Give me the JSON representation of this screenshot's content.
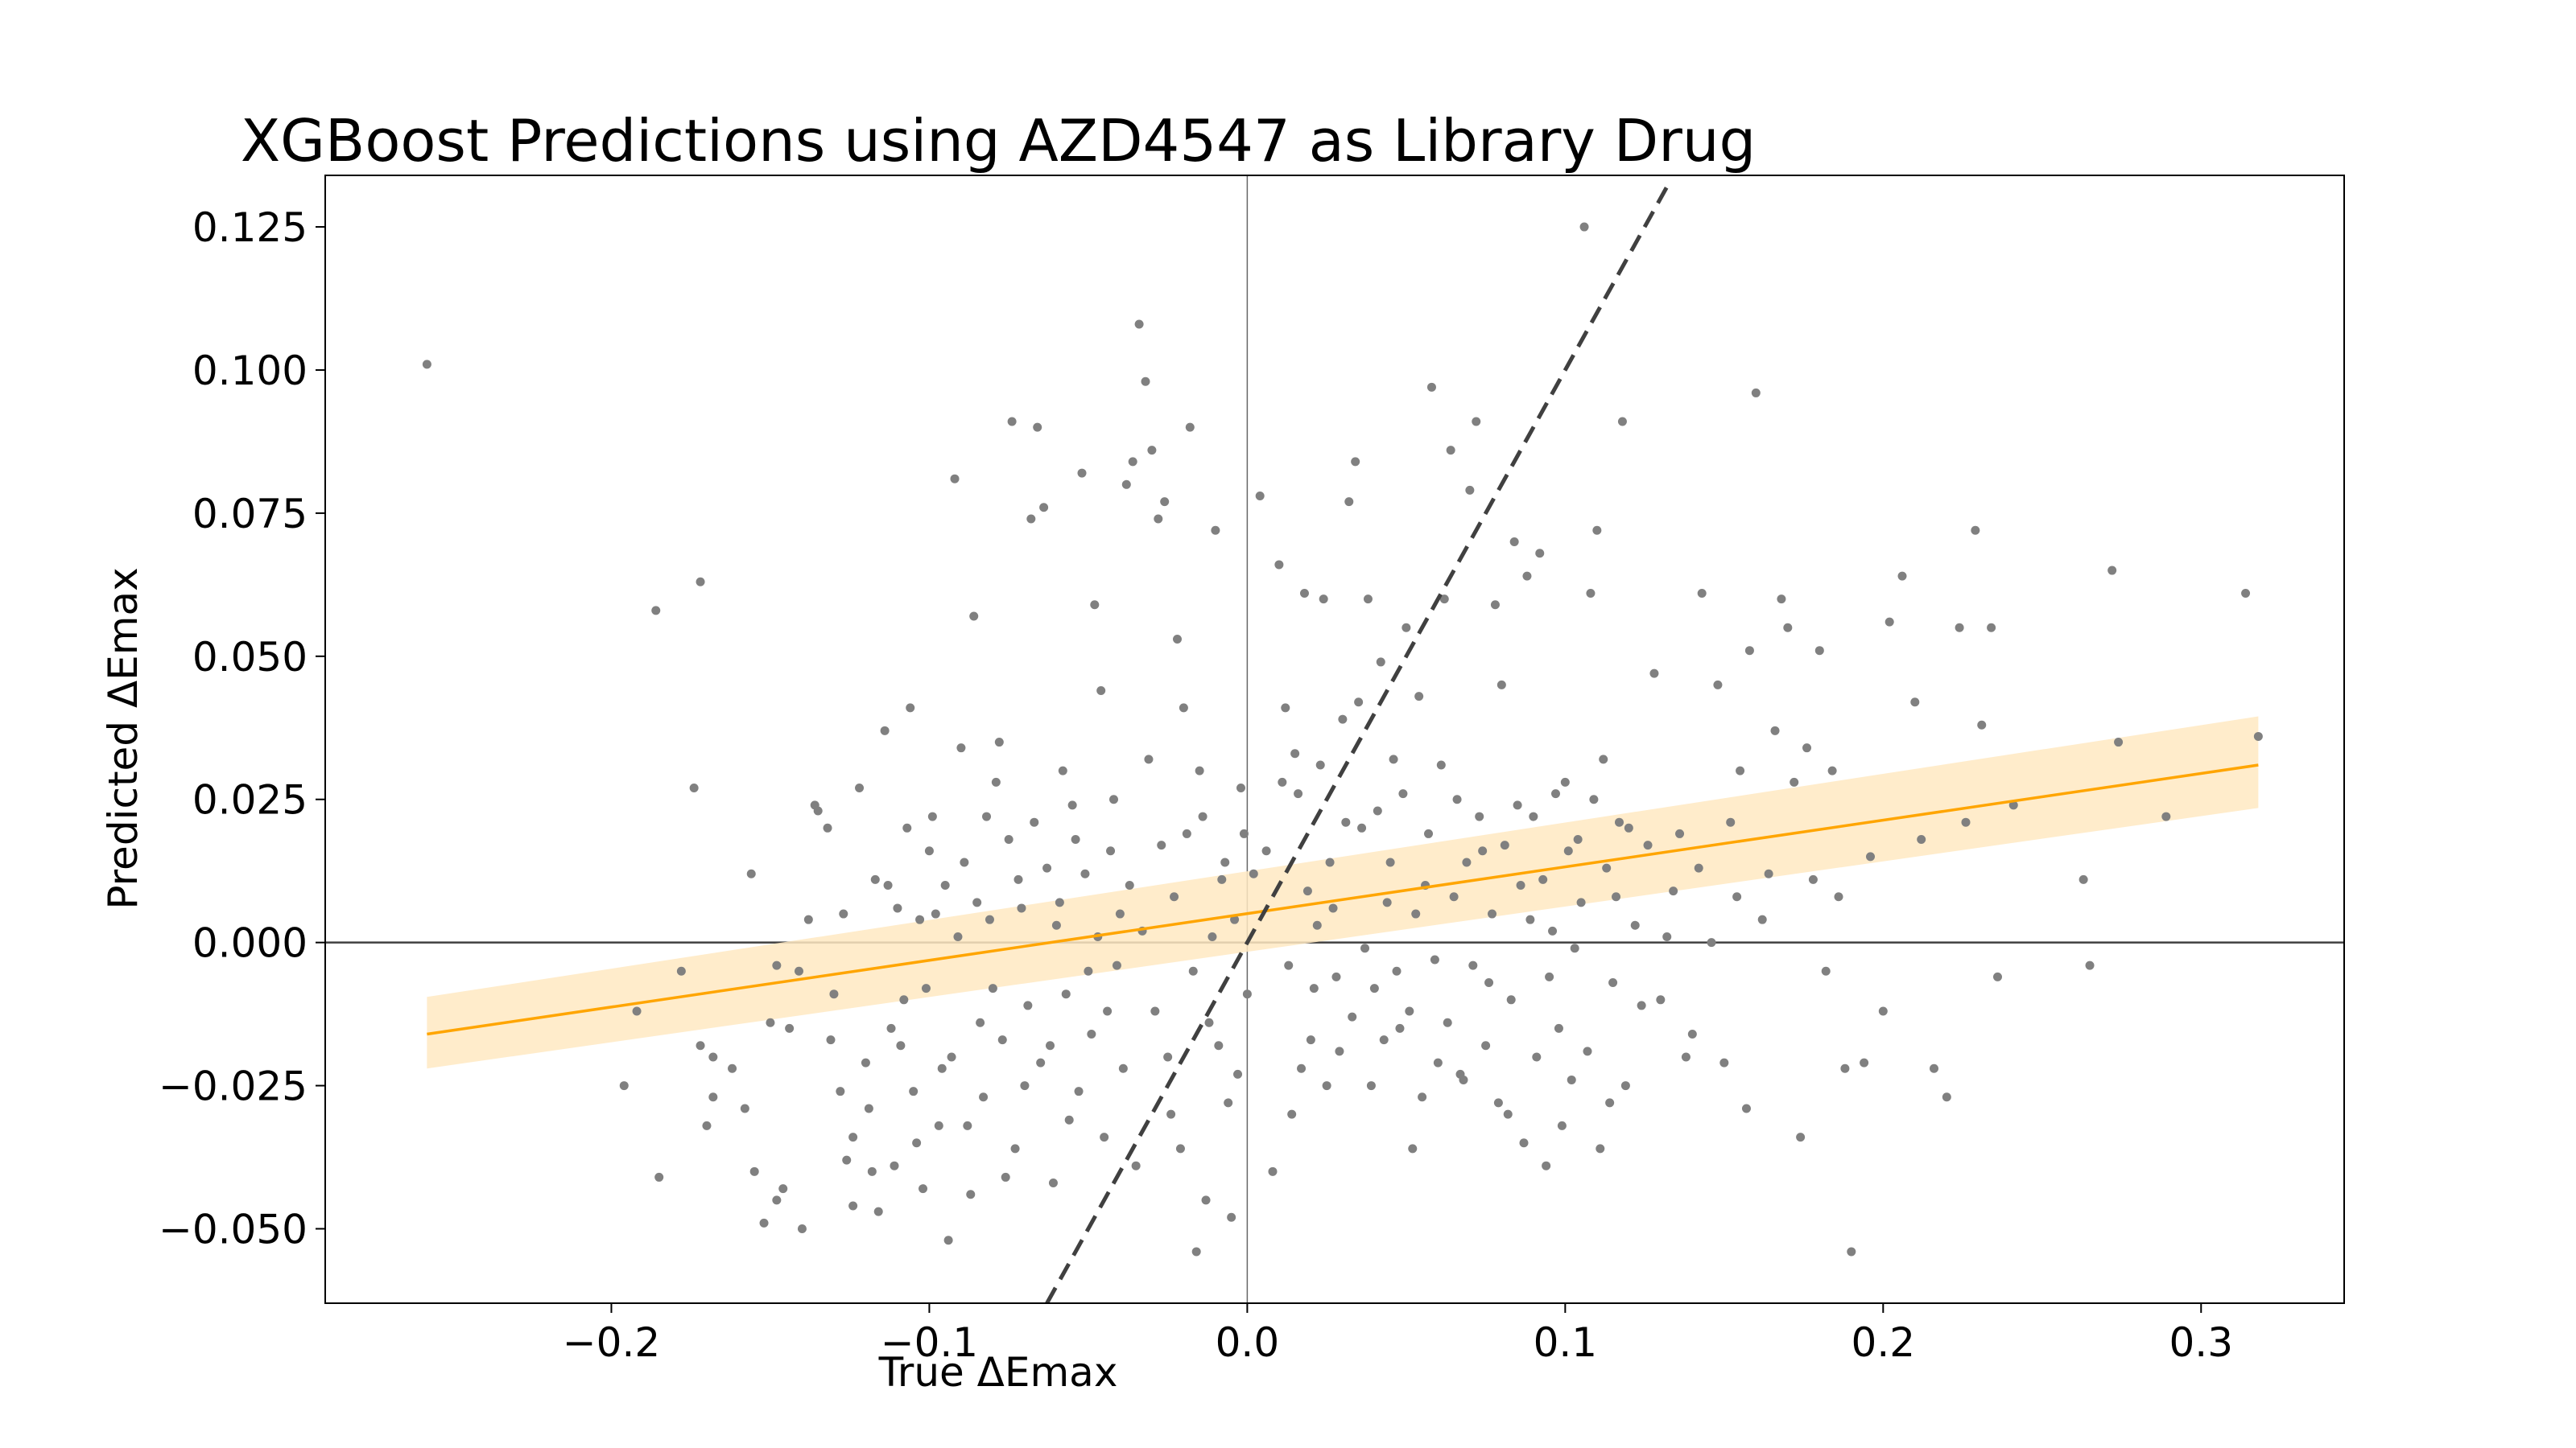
{
  "chart_data": {
    "type": "scatter",
    "title": "XGBoost Predictions using AZD4547 as Library Drug",
    "xlabel": "True ΔEmax",
    "ylabel": "Predicted ΔEmax",
    "xlim": [
      -0.29,
      0.345
    ],
    "ylim": [
      -0.063,
      0.134
    ],
    "xticks": [
      -0.2,
      -0.1,
      0.0,
      0.1,
      0.2,
      0.3
    ],
    "xtick_labels": [
      "−0.2",
      "−0.1",
      "0.0",
      "0.1",
      "0.2",
      "0.3"
    ],
    "yticks": [
      -0.05,
      -0.025,
      0.0,
      0.025,
      0.05,
      0.075,
      0.1,
      0.125
    ],
    "ytick_labels": [
      "−0.050",
      "−0.025",
      "0.000",
      "0.025",
      "0.050",
      "0.075",
      "0.100",
      "0.125"
    ],
    "grid": false,
    "zero_lines": true,
    "colors": {
      "points": "#808080",
      "regression_line": "#FFA500",
      "confidence_band": "#FFE9C2",
      "identity_line": "#404040",
      "zero_line": "#404040"
    },
    "regression": {
      "x": [
        -0.258,
        0.318
      ],
      "y": [
        -0.016,
        0.031
      ],
      "ci_lower": [
        -0.022,
        0.0235
      ],
      "ci_upper": [
        -0.0095,
        0.0395
      ]
    },
    "identity_line": {
      "x": [
        -0.063,
        0.133
      ],
      "y": [
        -0.063,
        0.133
      ],
      "style": "dashed"
    },
    "points": [
      [
        -0.258,
        0.101
      ],
      [
        -0.172,
        0.063
      ],
      [
        -0.186,
        0.058
      ],
      [
        -0.174,
        0.027
      ],
      [
        -0.178,
        -0.005
      ],
      [
        -0.192,
        -0.012
      ],
      [
        -0.185,
        -0.041
      ],
      [
        -0.196,
        -0.025
      ],
      [
        -0.168,
        -0.027
      ],
      [
        -0.17,
        -0.032
      ],
      [
        -0.168,
        -0.02
      ],
      [
        -0.172,
        -0.018
      ],
      [
        -0.156,
        0.012
      ],
      [
        -0.15,
        -0.014
      ],
      [
        -0.148,
        -0.004
      ],
      [
        -0.146,
        -0.043
      ],
      [
        -0.148,
        -0.045
      ],
      [
        -0.155,
        -0.04
      ],
      [
        -0.152,
        -0.049
      ],
      [
        -0.14,
        -0.05
      ],
      [
        -0.138,
        0.004
      ],
      [
        -0.135,
        0.023
      ],
      [
        -0.132,
        0.02
      ],
      [
        -0.13,
        -0.009
      ],
      [
        -0.128,
        -0.026
      ],
      [
        -0.126,
        -0.038
      ],
      [
        -0.124,
        -0.046
      ],
      [
        -0.122,
        0.027
      ],
      [
        -0.12,
        -0.021
      ],
      [
        -0.118,
        -0.04
      ],
      [
        -0.116,
        -0.047
      ],
      [
        -0.114,
        0.037
      ],
      [
        -0.112,
        -0.015
      ],
      [
        -0.11,
        0.006
      ],
      [
        -0.108,
        -0.01
      ],
      [
        -0.106,
        0.041
      ],
      [
        -0.104,
        -0.035
      ],
      [
        -0.102,
        -0.043
      ],
      [
        -0.1,
        0.016
      ],
      [
        -0.098,
        0.005
      ],
      [
        -0.096,
        -0.022
      ],
      [
        -0.094,
        -0.052
      ],
      [
        -0.092,
        0.081
      ],
      [
        -0.09,
        0.034
      ],
      [
        -0.088,
        -0.032
      ],
      [
        -0.086,
        0.057
      ],
      [
        -0.084,
        -0.014
      ],
      [
        -0.082,
        0.022
      ],
      [
        -0.08,
        -0.008
      ],
      [
        -0.078,
        0.035
      ],
      [
        -0.076,
        -0.041
      ],
      [
        -0.074,
        0.091
      ],
      [
        -0.072,
        0.011
      ],
      [
        -0.07,
        -0.025
      ],
      [
        -0.068,
        0.074
      ],
      [
        -0.066,
        0.09
      ],
      [
        -0.064,
        0.076
      ],
      [
        -0.062,
        -0.018
      ],
      [
        -0.06,
        0.003
      ],
      [
        -0.058,
        0.03
      ],
      [
        -0.056,
        -0.031
      ],
      [
        -0.054,
        0.018
      ],
      [
        -0.052,
        0.082
      ],
      [
        -0.05,
        -0.005
      ],
      [
        -0.048,
        0.059
      ],
      [
        -0.046,
        0.044
      ],
      [
        -0.044,
        -0.012
      ],
      [
        -0.042,
        0.025
      ],
      [
        -0.04,
        0.005
      ],
      [
        -0.038,
        0.08
      ],
      [
        -0.036,
        0.084
      ],
      [
        -0.034,
        0.108
      ],
      [
        -0.032,
        0.098
      ],
      [
        -0.03,
        0.086
      ],
      [
        -0.028,
        0.074
      ],
      [
        -0.026,
        0.077
      ],
      [
        -0.024,
        -0.03
      ],
      [
        -0.022,
        0.053
      ],
      [
        -0.02,
        0.041
      ],
      [
        -0.018,
        0.09
      ],
      [
        -0.016,
        -0.054
      ],
      [
        -0.014,
        0.022
      ],
      [
        -0.012,
        -0.014
      ],
      [
        -0.01,
        0.072
      ],
      [
        -0.008,
        0.011
      ],
      [
        -0.006,
        -0.028
      ],
      [
        -0.004,
        0.004
      ],
      [
        -0.002,
        0.027
      ],
      [
        0.0,
        -0.009
      ],
      [
        0.004,
        0.078
      ],
      [
        0.006,
        0.016
      ],
      [
        0.01,
        0.066
      ],
      [
        0.012,
        0.041
      ],
      [
        0.014,
        -0.03
      ],
      [
        0.016,
        0.026
      ],
      [
        0.018,
        0.061
      ],
      [
        0.02,
        -0.017
      ],
      [
        0.022,
        0.003
      ],
      [
        0.024,
        0.06
      ],
      [
        0.026,
        0.014
      ],
      [
        0.028,
        -0.006
      ],
      [
        0.03,
        0.039
      ],
      [
        0.032,
        0.077
      ],
      [
        0.034,
        0.084
      ],
      [
        0.036,
        0.02
      ],
      [
        0.038,
        0.06
      ],
      [
        0.04,
        -0.008
      ],
      [
        0.042,
        0.049
      ],
      [
        0.044,
        0.007
      ],
      [
        0.046,
        0.032
      ],
      [
        0.048,
        -0.015
      ],
      [
        0.05,
        0.055
      ],
      [
        0.052,
        -0.036
      ],
      [
        0.054,
        0.043
      ],
      [
        0.056,
        0.01
      ],
      [
        0.058,
        0.097
      ],
      [
        0.06,
        -0.021
      ],
      [
        0.062,
        0.06
      ],
      [
        0.064,
        0.086
      ],
      [
        0.066,
        0.025
      ],
      [
        0.068,
        -0.024
      ],
      [
        0.07,
        0.079
      ],
      [
        0.072,
        0.091
      ],
      [
        0.074,
        0.016
      ],
      [
        0.076,
        -0.007
      ],
      [
        0.078,
        0.059
      ],
      [
        0.08,
        0.045
      ],
      [
        0.082,
        -0.03
      ],
      [
        0.084,
        0.07
      ],
      [
        0.086,
        0.01
      ],
      [
        0.088,
        0.064
      ],
      [
        0.09,
        0.022
      ],
      [
        0.092,
        0.068
      ],
      [
        0.094,
        -0.039
      ],
      [
        0.096,
        0.002
      ],
      [
        0.098,
        -0.015
      ],
      [
        0.1,
        0.028
      ],
      [
        0.102,
        -0.024
      ],
      [
        0.104,
        0.018
      ],
      [
        0.106,
        0.125
      ],
      [
        0.108,
        0.061
      ],
      [
        0.11,
        0.072
      ],
      [
        0.112,
        0.032
      ],
      [
        0.114,
        -0.028
      ],
      [
        0.116,
        0.008
      ],
      [
        0.118,
        0.091
      ],
      [
        0.12,
        0.02
      ],
      [
        0.124,
        -0.011
      ],
      [
        0.128,
        0.047
      ],
      [
        0.132,
        0.001
      ],
      [
        0.136,
        0.019
      ],
      [
        0.14,
        -0.016
      ],
      [
        0.143,
        0.061
      ],
      [
        0.148,
        0.045
      ],
      [
        0.152,
        0.021
      ],
      [
        0.155,
        0.03
      ],
      [
        0.158,
        0.051
      ],
      [
        0.16,
        0.096
      ],
      [
        0.162,
        0.004
      ],
      [
        0.166,
        0.037
      ],
      [
        0.168,
        0.06
      ],
      [
        0.17,
        0.055
      ],
      [
        0.172,
        0.028
      ],
      [
        0.174,
        -0.034
      ],
      [
        0.176,
        0.034
      ],
      [
        0.178,
        0.011
      ],
      [
        0.18,
        0.051
      ],
      [
        0.184,
        0.03
      ],
      [
        0.188,
        -0.022
      ],
      [
        0.19,
        -0.054
      ],
      [
        0.196,
        0.015
      ],
      [
        0.202,
        0.056
      ],
      [
        0.206,
        0.064
      ],
      [
        0.21,
        0.042
      ],
      [
        0.216,
        -0.022
      ],
      [
        0.22,
        -0.027
      ],
      [
        0.224,
        0.055
      ],
      [
        0.226,
        0.021
      ],
      [
        0.229,
        0.072
      ],
      [
        0.231,
        0.038
      ],
      [
        0.234,
        0.055
      ],
      [
        0.236,
        -0.006
      ],
      [
        0.241,
        0.024
      ],
      [
        0.263,
        0.011
      ],
      [
        0.265,
        -0.004
      ],
      [
        0.272,
        0.065
      ],
      [
        0.274,
        0.035
      ],
      [
        0.289,
        0.022
      ],
      [
        0.314,
        0.061
      ],
      [
        0.318,
        0.036
      ],
      [
        -0.162,
        -0.022
      ],
      [
        -0.158,
        -0.029
      ],
      [
        -0.144,
        -0.015
      ],
      [
        -0.141,
        -0.005
      ],
      [
        -0.136,
        0.024
      ],
      [
        -0.131,
        -0.017
      ],
      [
        -0.127,
        0.005
      ],
      [
        -0.124,
        -0.034
      ],
      [
        -0.119,
        -0.029
      ],
      [
        -0.117,
        0.011
      ],
      [
        -0.113,
        0.01
      ],
      [
        -0.111,
        -0.039
      ],
      [
        -0.109,
        -0.018
      ],
      [
        -0.107,
        0.02
      ],
      [
        -0.105,
        -0.026
      ],
      [
        -0.103,
        0.004
      ],
      [
        -0.101,
        -0.008
      ],
      [
        -0.099,
        0.022
      ],
      [
        -0.097,
        -0.032
      ],
      [
        -0.095,
        0.01
      ],
      [
        -0.093,
        -0.02
      ],
      [
        -0.091,
        0.001
      ],
      [
        -0.089,
        0.014
      ],
      [
        -0.087,
        -0.044
      ],
      [
        -0.085,
        0.007
      ],
      [
        -0.083,
        -0.027
      ],
      [
        -0.081,
        0.004
      ],
      [
        -0.079,
        0.028
      ],
      [
        -0.077,
        -0.017
      ],
      [
        -0.075,
        0.018
      ],
      [
        -0.073,
        -0.036
      ],
      [
        -0.071,
        0.006
      ],
      [
        -0.069,
        -0.011
      ],
      [
        -0.067,
        0.021
      ],
      [
        -0.065,
        -0.021
      ],
      [
        -0.063,
        0.013
      ],
      [
        -0.061,
        -0.042
      ],
      [
        -0.059,
        0.007
      ],
      [
        -0.057,
        -0.009
      ],
      [
        -0.055,
        0.024
      ],
      [
        -0.053,
        -0.026
      ],
      [
        -0.051,
        0.012
      ],
      [
        -0.049,
        -0.016
      ],
      [
        -0.047,
        0.001
      ],
      [
        -0.045,
        -0.034
      ],
      [
        -0.043,
        0.016
      ],
      [
        -0.041,
        -0.004
      ],
      [
        -0.039,
        -0.022
      ],
      [
        -0.037,
        0.01
      ],
      [
        -0.035,
        -0.039
      ],
      [
        -0.033,
        0.002
      ],
      [
        -0.031,
        0.032
      ],
      [
        -0.029,
        -0.012
      ],
      [
        -0.027,
        0.017
      ],
      [
        -0.025,
        -0.02
      ],
      [
        -0.023,
        0.008
      ],
      [
        -0.021,
        -0.036
      ],
      [
        -0.019,
        0.019
      ],
      [
        -0.017,
        -0.005
      ],
      [
        -0.015,
        0.03
      ],
      [
        -0.013,
        -0.045
      ],
      [
        -0.011,
        0.001
      ],
      [
        -0.009,
        -0.018
      ],
      [
        -0.007,
        0.014
      ],
      [
        -0.005,
        -0.048
      ],
      [
        -0.003,
        -0.023
      ],
      [
        -0.001,
        0.019
      ],
      [
        0.002,
        0.012
      ],
      [
        0.008,
        -0.04
      ],
      [
        0.011,
        0.028
      ],
      [
        0.013,
        -0.004
      ],
      [
        0.015,
        0.033
      ],
      [
        0.017,
        -0.022
      ],
      [
        0.019,
        0.009
      ],
      [
        0.021,
        -0.008
      ],
      [
        0.023,
        0.031
      ],
      [
        0.025,
        -0.025
      ],
      [
        0.027,
        0.006
      ],
      [
        0.029,
        -0.019
      ],
      [
        0.031,
        0.021
      ],
      [
        0.033,
        -0.013
      ],
      [
        0.035,
        0.042
      ],
      [
        0.037,
        -0.001
      ],
      [
        0.039,
        -0.025
      ],
      [
        0.041,
        0.023
      ],
      [
        0.043,
        -0.017
      ],
      [
        0.045,
        0.014
      ],
      [
        0.047,
        -0.005
      ],
      [
        0.049,
        0.026
      ],
      [
        0.051,
        -0.012
      ],
      [
        0.053,
        0.005
      ],
      [
        0.055,
        -0.027
      ],
      [
        0.057,
        0.019
      ],
      [
        0.059,
        -0.003
      ],
      [
        0.061,
        0.031
      ],
      [
        0.063,
        -0.014
      ],
      [
        0.065,
        0.008
      ],
      [
        0.067,
        -0.023
      ],
      [
        0.069,
        0.014
      ],
      [
        0.071,
        -0.004
      ],
      [
        0.073,
        0.022
      ],
      [
        0.075,
        -0.018
      ],
      [
        0.077,
        0.005
      ],
      [
        0.079,
        -0.028
      ],
      [
        0.081,
        0.017
      ],
      [
        0.083,
        -0.01
      ],
      [
        0.085,
        0.024
      ],
      [
        0.087,
        -0.035
      ],
      [
        0.089,
        0.004
      ],
      [
        0.091,
        -0.02
      ],
      [
        0.093,
        0.011
      ],
      [
        0.095,
        -0.006
      ],
      [
        0.097,
        0.026
      ],
      [
        0.099,
        -0.032
      ],
      [
        0.101,
        0.016
      ],
      [
        0.103,
        -0.001
      ],
      [
        0.105,
        0.007
      ],
      [
        0.107,
        -0.019
      ],
      [
        0.109,
        0.025
      ],
      [
        0.111,
        -0.036
      ],
      [
        0.113,
        0.013
      ],
      [
        0.115,
        -0.007
      ],
      [
        0.117,
        0.021
      ],
      [
        0.119,
        -0.025
      ],
      [
        0.122,
        0.003
      ],
      [
        0.126,
        0.017
      ],
      [
        0.13,
        -0.01
      ],
      [
        0.134,
        0.009
      ],
      [
        0.138,
        -0.02
      ],
      [
        0.142,
        0.013
      ],
      [
        0.146,
        0.0
      ],
      [
        0.15,
        -0.021
      ],
      [
        0.154,
        0.008
      ],
      [
        0.157,
        -0.029
      ],
      [
        0.164,
        0.012
      ],
      [
        0.182,
        -0.005
      ],
      [
        0.186,
        0.008
      ],
      [
        0.194,
        -0.021
      ],
      [
        0.2,
        -0.012
      ],
      [
        0.212,
        0.018
      ]
    ]
  }
}
